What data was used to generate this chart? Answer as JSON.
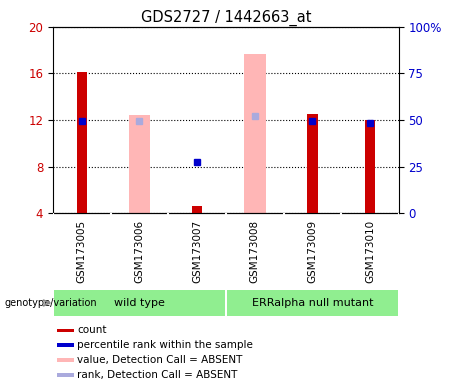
{
  "title": "GDS2727 / 1442663_at",
  "samples": [
    "GSM173005",
    "GSM173006",
    "GSM173007",
    "GSM173008",
    "GSM173009",
    "GSM173010"
  ],
  "ylim_left": [
    4,
    20
  ],
  "ylim_right": [
    0,
    100
  ],
  "yticks_left": [
    4,
    8,
    12,
    16,
    20
  ],
  "yticks_right": [
    0,
    25,
    50,
    75,
    100
  ],
  "ytick_right_labels": [
    "0",
    "25",
    "50",
    "75",
    "100%"
  ],
  "red_bars": {
    "GSM173005": 16.1,
    "GSM173007": 4.65,
    "GSM173009": 12.5,
    "GSM173010": 12.0
  },
  "pink_bars": {
    "GSM173006": 12.4,
    "GSM173008": 17.7
  },
  "blue_squares": {
    "GSM173005": 11.95,
    "GSM173007": 8.4,
    "GSM173009": 11.9,
    "GSM173010": 11.75
  },
  "light_blue_squares": {
    "GSM173006": 11.95,
    "GSM173008": 12.35
  },
  "group_wt": [
    0,
    1,
    2
  ],
  "group_err": [
    3,
    4,
    5
  ],
  "group_wt_label": "wild type",
  "group_err_label": "ERRalpha null mutant",
  "group_color": "#90EE90",
  "sample_box_color": "#d3d3d3",
  "bg_color": "#ffffff",
  "plot_bg": "#ffffff",
  "red_color": "#cc0000",
  "pink_color": "#ffb6b6",
  "blue_color": "#0000cc",
  "light_blue_color": "#aaaadd",
  "left_axis_color": "#cc0000",
  "right_axis_color": "#0000cc",
  "legend_labels": [
    "count",
    "percentile rank within the sample",
    "value, Detection Call = ABSENT",
    "rank, Detection Call = ABSENT"
  ],
  "legend_colors": [
    "#cc0000",
    "#0000cc",
    "#ffb6b6",
    "#aaaadd"
  ],
  "genotype_label": "genotype/variation"
}
